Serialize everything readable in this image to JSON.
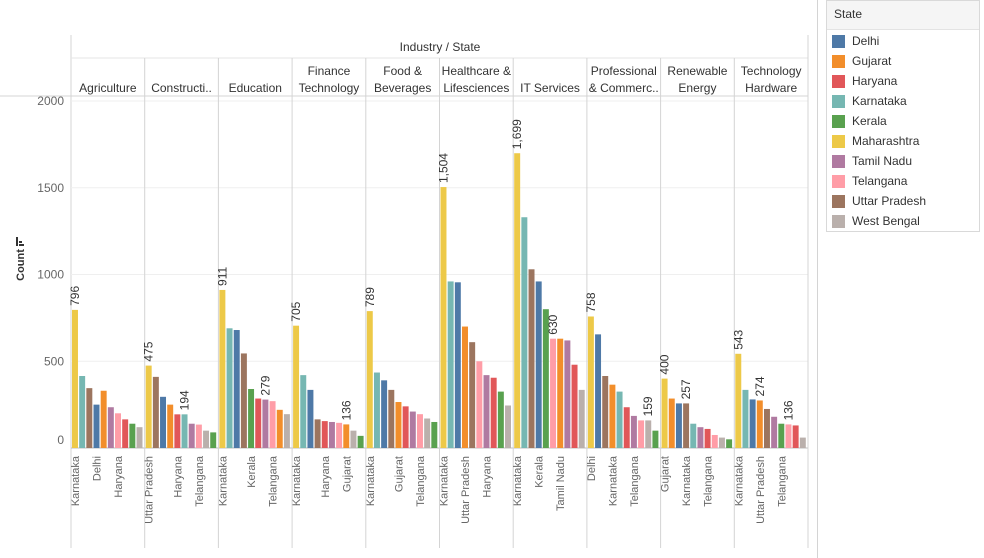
{
  "chart_data": {
    "type": "bar",
    "title": "Industry / State",
    "ylabel": "Count",
    "ylim": [
      0,
      2000
    ],
    "yticks": [
      0,
      500,
      1000,
      1500,
      2000
    ],
    "ytick_labels": [
      "0",
      "500",
      "1000",
      "1500",
      "2000"
    ],
    "legend": {
      "title": "State",
      "position": "right",
      "items": [
        {
          "name": "Delhi",
          "color": "#4e79a7"
        },
        {
          "name": "Gujarat",
          "color": "#f28e2b"
        },
        {
          "name": "Haryana",
          "color": "#e15759"
        },
        {
          "name": "Karnataka",
          "color": "#76b7b2"
        },
        {
          "name": "Kerala",
          "color": "#59a14f"
        },
        {
          "name": "Maharashtra",
          "color": "#edc948"
        },
        {
          "name": "Tamil Nadu",
          "color": "#b07aa1"
        },
        {
          "name": "Telangana",
          "color": "#ff9da7"
        },
        {
          "name": "Uttar Pradesh",
          "color": "#9c755f"
        },
        {
          "name": "West Bengal",
          "color": "#bab0ac"
        }
      ]
    },
    "panels": [
      {
        "header": [
          "Agriculture"
        ],
        "bars": [
          {
            "state": "Maharashtra",
            "value": 796,
            "label": "796",
            "xlabel": "Karnataka"
          },
          {
            "state": "Karnataka",
            "value": 415
          },
          {
            "state": "Uttar Pradesh",
            "value": 345
          },
          {
            "state": "Delhi",
            "value": 250,
            "xlabel": "Delhi"
          },
          {
            "state": "Gujarat",
            "value": 330
          },
          {
            "state": "Tamil Nadu",
            "value": 235
          },
          {
            "state": "Telangana",
            "value": 200,
            "xlabel": "Haryana"
          },
          {
            "state": "Haryana",
            "value": 165
          },
          {
            "state": "Kerala",
            "value": 140
          },
          {
            "state": "West Bengal",
            "value": 120
          }
        ]
      },
      {
        "header": [
          "Constructi.."
        ],
        "bars": [
          {
            "state": "Maharashtra",
            "value": 475,
            "label": "475",
            "xlabel": "Uttar Pradesh"
          },
          {
            "state": "Uttar Pradesh",
            "value": 410
          },
          {
            "state": "Delhi",
            "value": 295
          },
          {
            "state": "Gujarat",
            "value": 250
          },
          {
            "state": "Haryana",
            "value": 194,
            "xlabel": "Haryana"
          },
          {
            "state": "Karnataka",
            "value": 194,
            "label": "194"
          },
          {
            "state": "Tamil Nadu",
            "value": 140
          },
          {
            "state": "Telangana",
            "value": 135,
            "xlabel": "Telangana"
          },
          {
            "state": "West Bengal",
            "value": 100
          },
          {
            "state": "Kerala",
            "value": 90
          }
        ]
      },
      {
        "header": [
          "Education"
        ],
        "bars": [
          {
            "state": "Maharashtra",
            "value": 911,
            "label": "911",
            "xlabel": "Karnataka"
          },
          {
            "state": "Karnataka",
            "value": 690
          },
          {
            "state": "Delhi",
            "value": 680
          },
          {
            "state": "Uttar Pradesh",
            "value": 545
          },
          {
            "state": "Kerala",
            "value": 340,
            "xlabel": "Kerala"
          },
          {
            "state": "Haryana",
            "value": 285
          },
          {
            "state": "Tamil Nadu",
            "value": 279,
            "label": "279"
          },
          {
            "state": "Telangana",
            "value": 270,
            "xlabel": "Telangana"
          },
          {
            "state": "Gujarat",
            "value": 220
          },
          {
            "state": "West Bengal",
            "value": 195
          }
        ]
      },
      {
        "header": [
          "Finance",
          "Technology"
        ],
        "bars": [
          {
            "state": "Maharashtra",
            "value": 705,
            "label": "705",
            "xlabel": "Karnataka"
          },
          {
            "state": "Karnataka",
            "value": 420
          },
          {
            "state": "Delhi",
            "value": 335
          },
          {
            "state": "Uttar Pradesh",
            "value": 165
          },
          {
            "state": "Haryana",
            "value": 155,
            "xlabel": "Haryana"
          },
          {
            "state": "Tamil Nadu",
            "value": 150
          },
          {
            "state": "Telangana",
            "value": 145
          },
          {
            "state": "Gujarat",
            "value": 136,
            "label": "136",
            "xlabel": "Gujarat"
          },
          {
            "state": "West Bengal",
            "value": 100
          },
          {
            "state": "Kerala",
            "value": 70
          }
        ]
      },
      {
        "header": [
          "Food &",
          "Beverages"
        ],
        "bars": [
          {
            "state": "Maharashtra",
            "value": 789,
            "label": "789",
            "xlabel": "Karnataka"
          },
          {
            "state": "Karnataka",
            "value": 435
          },
          {
            "state": "Delhi",
            "value": 390
          },
          {
            "state": "Uttar Pradesh",
            "value": 335
          },
          {
            "state": "Gujarat",
            "value": 265,
            "xlabel": "Gujarat"
          },
          {
            "state": "Haryana",
            "value": 240
          },
          {
            "state": "Tamil Nadu",
            "value": 210
          },
          {
            "state": "Telangana",
            "value": 195,
            "xlabel": "Telangana"
          },
          {
            "state": "West Bengal",
            "value": 170
          },
          {
            "state": "Kerala",
            "value": 150
          }
        ]
      },
      {
        "header": [
          "Healthcare &",
          "Lifesciences"
        ],
        "bars": [
          {
            "state": "Maharashtra",
            "value": 1504,
            "label": "1,504",
            "xlabel": "Karnataka"
          },
          {
            "state": "Karnataka",
            "value": 960
          },
          {
            "state": "Delhi",
            "value": 955
          },
          {
            "state": "Gujarat",
            "value": 700,
            "xlabel": "Uttar Pradesh"
          },
          {
            "state": "Uttar Pradesh",
            "value": 610
          },
          {
            "state": "Telangana",
            "value": 500
          },
          {
            "state": "Tamil Nadu",
            "value": 420,
            "xlabel": "Haryana"
          },
          {
            "state": "Haryana",
            "value": 405
          },
          {
            "state": "Kerala",
            "value": 325
          },
          {
            "state": "West Bengal",
            "value": 245
          }
        ]
      },
      {
        "header": [
          "IT Services"
        ],
        "bars": [
          {
            "state": "Maharashtra",
            "value": 1699,
            "label": "1,699",
            "xlabel": "Karnataka"
          },
          {
            "state": "Karnataka",
            "value": 1330
          },
          {
            "state": "Uttar Pradesh",
            "value": 1030
          },
          {
            "state": "Delhi",
            "value": 960,
            "xlabel": "Kerala"
          },
          {
            "state": "Kerala",
            "value": 800
          },
          {
            "state": "Telangana",
            "value": 630,
            "label": "630"
          },
          {
            "state": "Gujarat",
            "value": 630,
            "xlabel": "Tamil Nadu"
          },
          {
            "state": "Tamil Nadu",
            "value": 620
          },
          {
            "state": "Haryana",
            "value": 480
          },
          {
            "state": "West Bengal",
            "value": 335
          }
        ]
      },
      {
        "header": [
          "Professional",
          "& Commerc.."
        ],
        "bars": [
          {
            "state": "Maharashtra",
            "value": 758,
            "label": "758",
            "xlabel": "Delhi"
          },
          {
            "state": "Delhi",
            "value": 655
          },
          {
            "state": "Uttar Pradesh",
            "value": 415
          },
          {
            "state": "Gujarat",
            "value": 365,
            "xlabel": "Karnataka"
          },
          {
            "state": "Karnataka",
            "value": 325
          },
          {
            "state": "Haryana",
            "value": 235
          },
          {
            "state": "Tamil Nadu",
            "value": 185,
            "xlabel": "Telangana"
          },
          {
            "state": "Telangana",
            "value": 159
          },
          {
            "state": "West Bengal",
            "value": 159,
            "label": "159"
          },
          {
            "state": "Kerala",
            "value": 100
          }
        ]
      },
      {
        "header": [
          "Renewable",
          "Energy"
        ],
        "bars": [
          {
            "state": "Maharashtra",
            "value": 400,
            "label": "400",
            "xlabel": "Gujarat"
          },
          {
            "state": "Gujarat",
            "value": 285
          },
          {
            "state": "Delhi",
            "value": 257
          },
          {
            "state": "Uttar Pradesh",
            "value": 257,
            "label": "257",
            "xlabel": "Karnataka"
          },
          {
            "state": "Karnataka",
            "value": 140
          },
          {
            "state": "Tamil Nadu",
            "value": 120
          },
          {
            "state": "Haryana",
            "value": 110,
            "xlabel": "Telangana"
          },
          {
            "state": "Telangana",
            "value": 75
          },
          {
            "state": "West Bengal",
            "value": 60
          },
          {
            "state": "Kerala",
            "value": 50
          }
        ]
      },
      {
        "header": [
          "Technology",
          "Hardware"
        ],
        "bars": [
          {
            "state": "Maharashtra",
            "value": 543,
            "label": "543",
            "xlabel": "Karnataka"
          },
          {
            "state": "Karnataka",
            "value": 335
          },
          {
            "state": "Delhi",
            "value": 280
          },
          {
            "state": "Gujarat",
            "value": 274,
            "label": "274",
            "xlabel": "Uttar Pradesh"
          },
          {
            "state": "Uttar Pradesh",
            "value": 225
          },
          {
            "state": "Tamil Nadu",
            "value": 180
          },
          {
            "state": "Kerala",
            "value": 140,
            "xlabel": "Telangana"
          },
          {
            "state": "Telangana",
            "value": 136,
            "label": "136"
          },
          {
            "state": "Haryana",
            "value": 130
          },
          {
            "state": "West Bengal",
            "value": 60
          }
        ]
      }
    ]
  }
}
